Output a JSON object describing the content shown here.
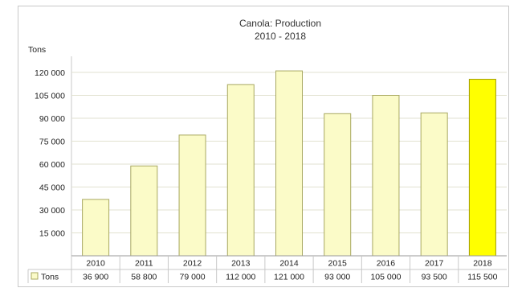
{
  "chart_data": {
    "type": "bar",
    "title": "Canola: Production",
    "subtitle": "2010 - 2018",
    "ylabel": "Tons",
    "xlabel": "",
    "ylim": [
      0,
      120000
    ],
    "yticks": [
      "15 000",
      "30 000",
      "45 000",
      "60 000",
      "75 000",
      "90 000",
      "105 000",
      "120 000"
    ],
    "ytick_values": [
      15000,
      30000,
      45000,
      60000,
      75000,
      90000,
      105000,
      120000
    ],
    "grid": true,
    "legend": "bottom-left",
    "categories": [
      "2010",
      "2011",
      "2012",
      "2013",
      "2014",
      "2015",
      "2016",
      "2017",
      "2018"
    ],
    "series": [
      {
        "name": "Tons",
        "values": [
          36900,
          58800,
          79000,
          112000,
          121000,
          93000,
          105000,
          93500,
          115500
        ],
        "value_labels": [
          "36 900",
          "58 800",
          "79 000",
          "112 000",
          "121 000",
          "93 000",
          "105 000",
          "93 500",
          "115 500"
        ]
      }
    ],
    "highlight_index": 8,
    "colors": {
      "bar": "#fbfbc8",
      "bar_border": "#a8a860",
      "highlight": "#ffff00",
      "highlight_border": "#a09a00",
      "grid": "#e2e2d0",
      "frame": "#c8c8c8",
      "legend_swatch": "#fbfbc8"
    }
  }
}
